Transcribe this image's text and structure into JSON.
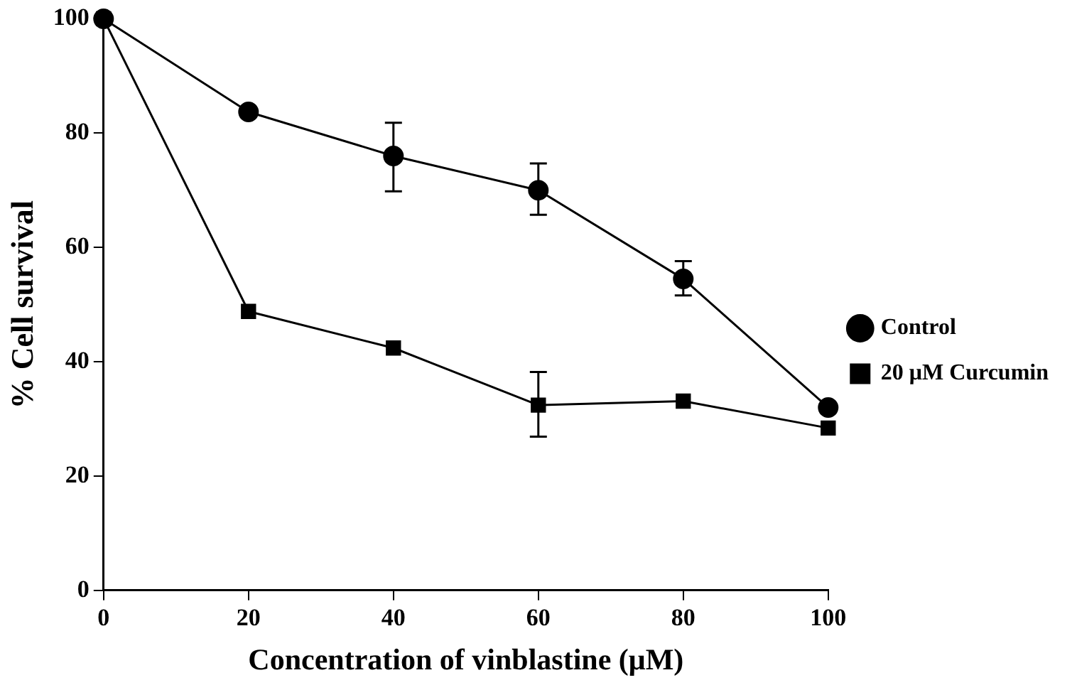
{
  "chart_data": {
    "type": "line",
    "xlabel": "Concentration of vinblastine (μM)",
    "ylabel": "% Cell survival",
    "x": [
      0,
      20,
      40,
      60,
      80,
      100
    ],
    "series": [
      {
        "name": "Control",
        "color": "#000000",
        "marker": "circle",
        "values": [
          100,
          83.7,
          76,
          70,
          54.5,
          32
        ],
        "errors": [
          null,
          null,
          [
            69.8,
            81.8
          ],
          [
            65.7,
            74.7
          ],
          [
            51.6,
            57.6
          ],
          null
        ]
      },
      {
        "name": "20 μM Curcumin",
        "color": "#000000",
        "marker": "square",
        "values": [
          100,
          48.8,
          42.4,
          32.4,
          33.1,
          28.4
        ],
        "errors": [
          null,
          null,
          null,
          [
            26.9,
            38.2
          ],
          null,
          null
        ]
      }
    ],
    "xlim": [
      0,
      100
    ],
    "xticks": [
      0,
      20,
      40,
      60,
      80,
      100
    ],
    "ylim": [
      0,
      100
    ],
    "yticks": [
      0,
      20,
      40,
      60,
      80,
      100
    ],
    "grid": false,
    "legend": "right"
  }
}
